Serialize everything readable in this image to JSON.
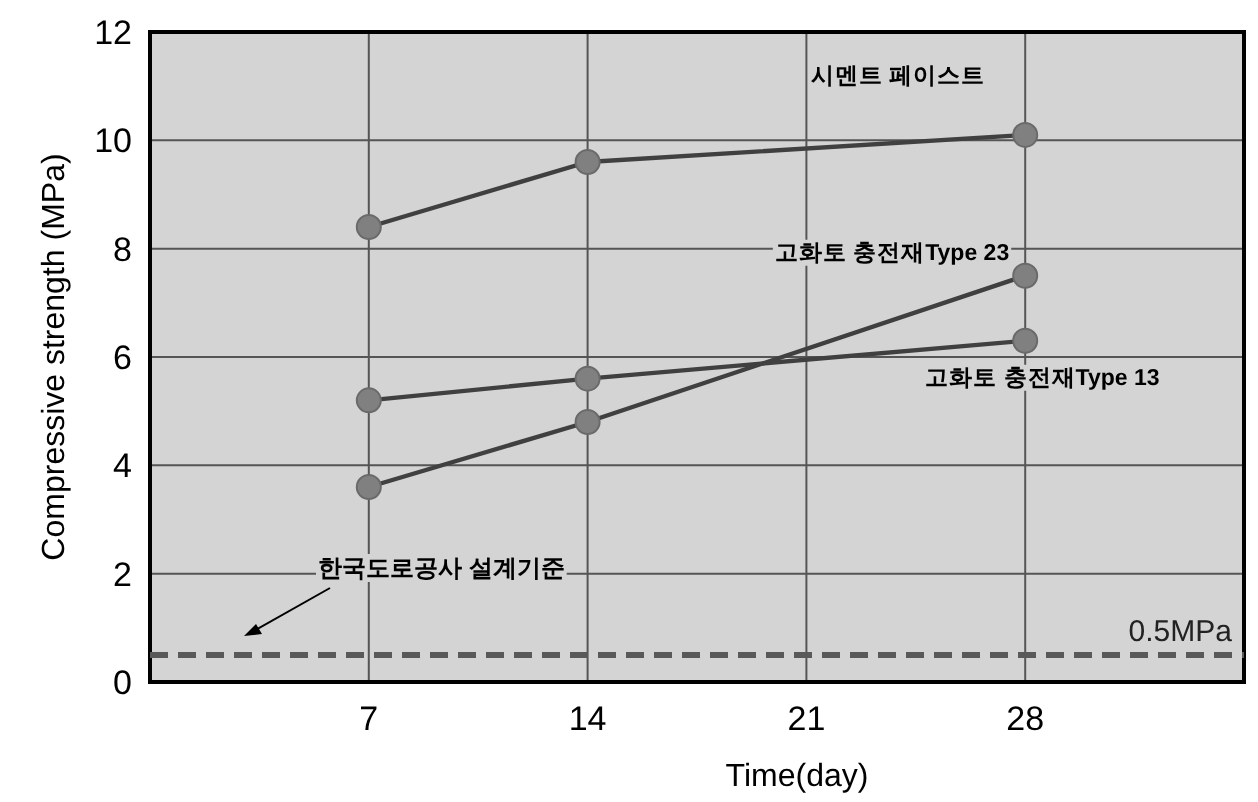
{
  "chart_data": {
    "type": "line",
    "xlabel": "Time(day)",
    "ylabel": "Compressive strength (MPa)",
    "x": [
      7,
      14,
      28
    ],
    "series": [
      {
        "name": "시멘트 페이스트",
        "color": "#404040",
        "values": [
          8.4,
          9.6,
          10.1
        ]
      },
      {
        "name": "고화토 충전재Type 23",
        "color": "#404040",
        "values": [
          3.6,
          4.8,
          7.5
        ]
      },
      {
        "name": "고화토 충전재Type 13",
        "color": "#404040",
        "values": [
          5.2,
          5.6,
          6.3
        ]
      }
    ],
    "xlim": [
      0,
      35
    ],
    "xticks": [
      7,
      14,
      21,
      28
    ],
    "ylim": [
      0,
      12
    ],
    "yticks": [
      0,
      2,
      4,
      6,
      8,
      10,
      12
    ],
    "ref_lines": [
      {
        "axis": "y",
        "value": 0.5,
        "label": "0.5MPa",
        "color": "#595959",
        "line_style": "dashed"
      }
    ],
    "annotations": [
      "한국도로공사 설계기준"
    ],
    "grid": true,
    "marker": "circle",
    "line_style": "solid"
  }
}
